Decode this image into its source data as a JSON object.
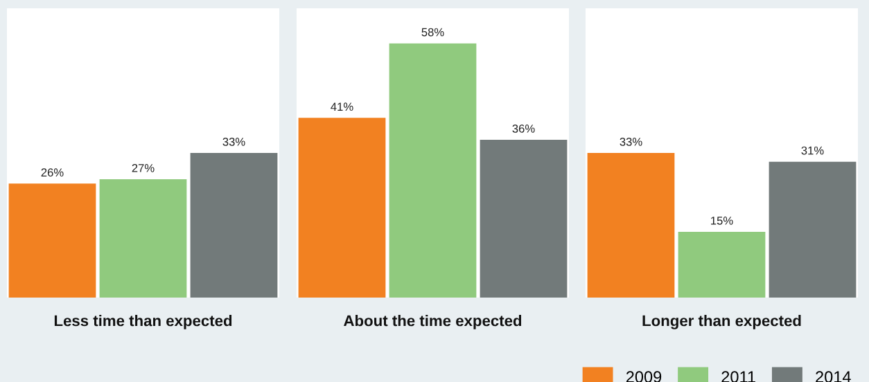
{
  "chart_data": [
    {
      "type": "bar",
      "xlabel": "Less time than expected",
      "categories": [
        null
      ],
      "ylim": [
        0,
        66
      ],
      "tick_labels": false,
      "series": [
        {
          "color": "#f28121",
          "values": [
            26
          ],
          "value_labels": [
            "26%"
          ]
        },
        {
          "color": "#90ca7e",
          "values": [
            27
          ],
          "value_labels": [
            "27%"
          ]
        },
        {
          "color": "#727a7a",
          "values": [
            33
          ],
          "value_labels": [
            "33%"
          ]
        }
      ]
    },
    {
      "type": "bar",
      "xlabel": "About the time expected",
      "categories": [
        null
      ],
      "ylim": [
        0,
        66
      ],
      "tick_labels": false,
      "series": [
        {
          "color": "#f28121",
          "values": [
            41
          ],
          "value_labels": [
            "41%"
          ]
        },
        {
          "color": "#90ca7e",
          "values": [
            58
          ],
          "value_labels": [
            "58%"
          ]
        },
        {
          "color": "#727a7a",
          "values": [
            36
          ],
          "value_labels": [
            "36%"
          ]
        }
      ]
    },
    {
      "type": "bar",
      "xlabel": "Longer than expected",
      "categories": [
        null
      ],
      "ylim": [
        0,
        66
      ],
      "tick_labels": false,
      "legend": "bottom right",
      "series": [
        {
          "name": "2009",
          "color": "#f28121",
          "values": [
            33
          ],
          "value_labels": [
            "33%"
          ]
        },
        {
          "name": "2011",
          "color": "#90ca7e",
          "values": [
            15
          ],
          "value_labels": [
            "15%"
          ]
        },
        {
          "name": "2014",
          "color": "#727a7a",
          "values": [
            31
          ],
          "value_labels": [
            "31%"
          ]
        }
      ]
    }
  ]
}
